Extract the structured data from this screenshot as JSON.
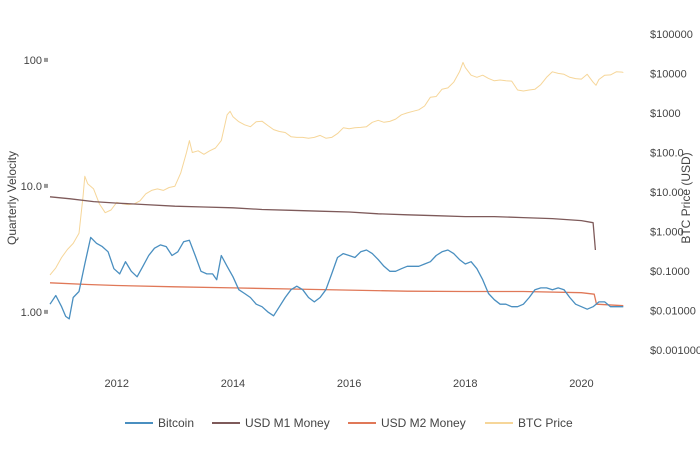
{
  "chart_data": {
    "type": "line",
    "title": "",
    "xlabel": "",
    "ylabel_left": "Quarterly Velocity",
    "ylabel_right": "BTC Price (USD)",
    "grid": false,
    "legend_position": "bottom",
    "x_ticks": [
      "2012",
      "2014",
      "2016",
      "2018",
      "2020"
    ],
    "xlim": [
      2010.85,
      2020.75
    ],
    "y_left": {
      "scale": "log",
      "range": [
        0.4,
        200
      ],
      "ticks": [
        "1.00",
        "10.0",
        "100"
      ]
    },
    "y_right": {
      "scale": "log",
      "range": [
        0.0005,
        200000
      ],
      "ticks": [
        "$0.001000",
        "$0.01000",
        "$0.1000",
        "$1.000",
        "$10.00",
        "$100.0",
        "$1000",
        "$10000",
        "$100000"
      ]
    },
    "series": [
      {
        "name": "Bitcoin",
        "axis": "left",
        "color": "#4a8fc0",
        "points": [
          [
            2010.85,
            1.15
          ],
          [
            2010.95,
            1.35
          ],
          [
            2011.05,
            1.1
          ],
          [
            2011.12,
            0.92
          ],
          [
            2011.18,
            0.88
          ],
          [
            2011.25,
            1.3
          ],
          [
            2011.35,
            1.45
          ],
          [
            2011.45,
            2.4
          ],
          [
            2011.55,
            3.9
          ],
          [
            2011.65,
            3.5
          ],
          [
            2011.75,
            3.3
          ],
          [
            2011.85,
            3.0
          ],
          [
            2011.95,
            2.2
          ],
          [
            2012.05,
            2.0
          ],
          [
            2012.15,
            2.5
          ],
          [
            2012.25,
            2.1
          ],
          [
            2012.35,
            1.9
          ],
          [
            2012.45,
            2.3
          ],
          [
            2012.55,
            2.8
          ],
          [
            2012.65,
            3.2
          ],
          [
            2012.75,
            3.4
          ],
          [
            2012.85,
            3.3
          ],
          [
            2012.95,
            2.8
          ],
          [
            2013.05,
            3.0
          ],
          [
            2013.15,
            3.6
          ],
          [
            2013.25,
            3.7
          ],
          [
            2013.35,
            2.8
          ],
          [
            2013.45,
            2.1
          ],
          [
            2013.55,
            2.0
          ],
          [
            2013.65,
            2.0
          ],
          [
            2013.72,
            1.8
          ],
          [
            2013.8,
            2.8
          ],
          [
            2013.9,
            2.3
          ],
          [
            2014.0,
            1.9
          ],
          [
            2014.1,
            1.5
          ],
          [
            2014.2,
            1.4
          ],
          [
            2014.3,
            1.3
          ],
          [
            2014.4,
            1.15
          ],
          [
            2014.5,
            1.1
          ],
          [
            2014.6,
            1.0
          ],
          [
            2014.7,
            0.93
          ],
          [
            2014.8,
            1.1
          ],
          [
            2014.9,
            1.3
          ],
          [
            2015.0,
            1.5
          ],
          [
            2015.1,
            1.6
          ],
          [
            2015.2,
            1.5
          ],
          [
            2015.3,
            1.3
          ],
          [
            2015.4,
            1.2
          ],
          [
            2015.5,
            1.3
          ],
          [
            2015.6,
            1.5
          ],
          [
            2015.7,
            2.0
          ],
          [
            2015.8,
            2.7
          ],
          [
            2015.9,
            2.9
          ],
          [
            2016.0,
            2.8
          ],
          [
            2016.1,
            2.7
          ],
          [
            2016.2,
            3.0
          ],
          [
            2016.3,
            3.1
          ],
          [
            2016.4,
            2.9
          ],
          [
            2016.5,
            2.6
          ],
          [
            2016.6,
            2.3
          ],
          [
            2016.7,
            2.1
          ],
          [
            2016.8,
            2.1
          ],
          [
            2016.9,
            2.2
          ],
          [
            2017.0,
            2.3
          ],
          [
            2017.1,
            2.3
          ],
          [
            2017.2,
            2.3
          ],
          [
            2017.3,
            2.4
          ],
          [
            2017.4,
            2.5
          ],
          [
            2017.5,
            2.8
          ],
          [
            2017.6,
            3.0
          ],
          [
            2017.7,
            3.1
          ],
          [
            2017.8,
            2.9
          ],
          [
            2017.9,
            2.6
          ],
          [
            2018.0,
            2.4
          ],
          [
            2018.1,
            2.5
          ],
          [
            2018.2,
            2.2
          ],
          [
            2018.3,
            1.8
          ],
          [
            2018.4,
            1.4
          ],
          [
            2018.5,
            1.25
          ],
          [
            2018.6,
            1.15
          ],
          [
            2018.7,
            1.15
          ],
          [
            2018.8,
            1.1
          ],
          [
            2018.9,
            1.1
          ],
          [
            2019.0,
            1.15
          ],
          [
            2019.1,
            1.3
          ],
          [
            2019.2,
            1.5
          ],
          [
            2019.3,
            1.55
          ],
          [
            2019.4,
            1.55
          ],
          [
            2019.5,
            1.5
          ],
          [
            2019.6,
            1.55
          ],
          [
            2019.7,
            1.5
          ],
          [
            2019.8,
            1.3
          ],
          [
            2019.9,
            1.15
          ],
          [
            2020.0,
            1.1
          ],
          [
            2020.1,
            1.05
          ],
          [
            2020.2,
            1.1
          ],
          [
            2020.3,
            1.2
          ],
          [
            2020.4,
            1.2
          ],
          [
            2020.5,
            1.1
          ],
          [
            2020.6,
            1.1
          ],
          [
            2020.72,
            1.1
          ]
        ]
      },
      {
        "name": "USD M1 Money",
        "axis": "left",
        "color": "#7e5a5a",
        "points": [
          [
            2010.85,
            8.2
          ],
          [
            2011.2,
            7.9
          ],
          [
            2011.6,
            7.5
          ],
          [
            2012.0,
            7.3
          ],
          [
            2012.5,
            7.1
          ],
          [
            2013.0,
            6.9
          ],
          [
            2013.5,
            6.8
          ],
          [
            2014.0,
            6.7
          ],
          [
            2014.5,
            6.5
          ],
          [
            2015.0,
            6.4
          ],
          [
            2015.5,
            6.3
          ],
          [
            2016.0,
            6.2
          ],
          [
            2016.5,
            6.0
          ],
          [
            2017.0,
            5.9
          ],
          [
            2017.5,
            5.8
          ],
          [
            2018.0,
            5.7
          ],
          [
            2018.5,
            5.7
          ],
          [
            2019.0,
            5.6
          ],
          [
            2019.5,
            5.5
          ],
          [
            2020.0,
            5.3
          ],
          [
            2020.2,
            5.1
          ],
          [
            2020.24,
            3.1
          ]
        ]
      },
      {
        "name": "USD M2 Money",
        "axis": "left",
        "color": "#e07858",
        "points": [
          [
            2010.85,
            1.7
          ],
          [
            2011.5,
            1.65
          ],
          [
            2012.0,
            1.62
          ],
          [
            2013.0,
            1.58
          ],
          [
            2014.0,
            1.55
          ],
          [
            2015.0,
            1.52
          ],
          [
            2016.0,
            1.49
          ],
          [
            2017.0,
            1.46
          ],
          [
            2018.0,
            1.45
          ],
          [
            2019.0,
            1.45
          ],
          [
            2020.0,
            1.42
          ],
          [
            2020.22,
            1.38
          ],
          [
            2020.26,
            1.15
          ],
          [
            2020.72,
            1.12
          ]
        ]
      },
      {
        "name": "BTC Price",
        "axis": "right",
        "color": "#f6d699",
        "points": [
          [
            2010.85,
            0.08
          ],
          [
            2010.95,
            0.12
          ],
          [
            2011.05,
            0.22
          ],
          [
            2011.15,
            0.35
          ],
          [
            2011.25,
            0.5
          ],
          [
            2011.35,
            0.9
          ],
          [
            2011.42,
            8
          ],
          [
            2011.45,
            25
          ],
          [
            2011.5,
            16
          ],
          [
            2011.6,
            12
          ],
          [
            2011.7,
            5
          ],
          [
            2011.8,
            3
          ],
          [
            2011.9,
            3.5
          ],
          [
            2012.0,
            5.5
          ],
          [
            2012.1,
            5
          ],
          [
            2012.2,
            4.8
          ],
          [
            2012.3,
            5
          ],
          [
            2012.4,
            6
          ],
          [
            2012.5,
            9
          ],
          [
            2012.6,
            11
          ],
          [
            2012.7,
            12
          ],
          [
            2012.8,
            11
          ],
          [
            2012.9,
            13
          ],
          [
            2013.0,
            14
          ],
          [
            2013.1,
            30
          ],
          [
            2013.2,
            100
          ],
          [
            2013.25,
            200
          ],
          [
            2013.3,
            100
          ],
          [
            2013.4,
            110
          ],
          [
            2013.5,
            90
          ],
          [
            2013.6,
            110
          ],
          [
            2013.7,
            130
          ],
          [
            2013.8,
            200
          ],
          [
            2013.9,
            900
          ],
          [
            2013.95,
            1100
          ],
          [
            2014.0,
            800
          ],
          [
            2014.1,
            600
          ],
          [
            2014.2,
            500
          ],
          [
            2014.3,
            450
          ],
          [
            2014.4,
            600
          ],
          [
            2014.5,
            620
          ],
          [
            2014.6,
            480
          ],
          [
            2014.7,
            380
          ],
          [
            2014.8,
            340
          ],
          [
            2014.9,
            320
          ],
          [
            2015.0,
            250
          ],
          [
            2015.1,
            240
          ],
          [
            2015.2,
            240
          ],
          [
            2015.3,
            230
          ],
          [
            2015.4,
            240
          ],
          [
            2015.5,
            270
          ],
          [
            2015.6,
            230
          ],
          [
            2015.7,
            240
          ],
          [
            2015.8,
            300
          ],
          [
            2015.9,
            420
          ],
          [
            2016.0,
            400
          ],
          [
            2016.1,
            420
          ],
          [
            2016.2,
            430
          ],
          [
            2016.3,
            450
          ],
          [
            2016.4,
            580
          ],
          [
            2016.5,
            650
          ],
          [
            2016.6,
            580
          ],
          [
            2016.7,
            610
          ],
          [
            2016.8,
            700
          ],
          [
            2016.9,
            900
          ],
          [
            2017.0,
            1000
          ],
          [
            2017.1,
            1100
          ],
          [
            2017.2,
            1200
          ],
          [
            2017.3,
            1500
          ],
          [
            2017.4,
            2500
          ],
          [
            2017.5,
            2600
          ],
          [
            2017.6,
            4000
          ],
          [
            2017.7,
            4300
          ],
          [
            2017.8,
            6000
          ],
          [
            2017.9,
            11000
          ],
          [
            2017.96,
            19000
          ],
          [
            2018.0,
            14000
          ],
          [
            2018.1,
            9000
          ],
          [
            2018.2,
            8000
          ],
          [
            2018.3,
            9000
          ],
          [
            2018.4,
            7500
          ],
          [
            2018.5,
            6500
          ],
          [
            2018.6,
            6800
          ],
          [
            2018.7,
            6500
          ],
          [
            2018.8,
            6400
          ],
          [
            2018.9,
            3800
          ],
          [
            2019.0,
            3600
          ],
          [
            2019.1,
            3800
          ],
          [
            2019.2,
            4000
          ],
          [
            2019.3,
            5200
          ],
          [
            2019.4,
            8000
          ],
          [
            2019.5,
            11000
          ],
          [
            2019.6,
            10000
          ],
          [
            2019.7,
            9500
          ],
          [
            2019.8,
            8000
          ],
          [
            2019.9,
            7400
          ],
          [
            2020.0,
            7200
          ],
          [
            2020.1,
            9500
          ],
          [
            2020.2,
            6000
          ],
          [
            2020.25,
            5000
          ],
          [
            2020.3,
            7000
          ],
          [
            2020.4,
            9000
          ],
          [
            2020.5,
            9200
          ],
          [
            2020.6,
            11000
          ],
          [
            2020.7,
            10800
          ],
          [
            2020.72,
            10500
          ]
        ]
      }
    ]
  }
}
